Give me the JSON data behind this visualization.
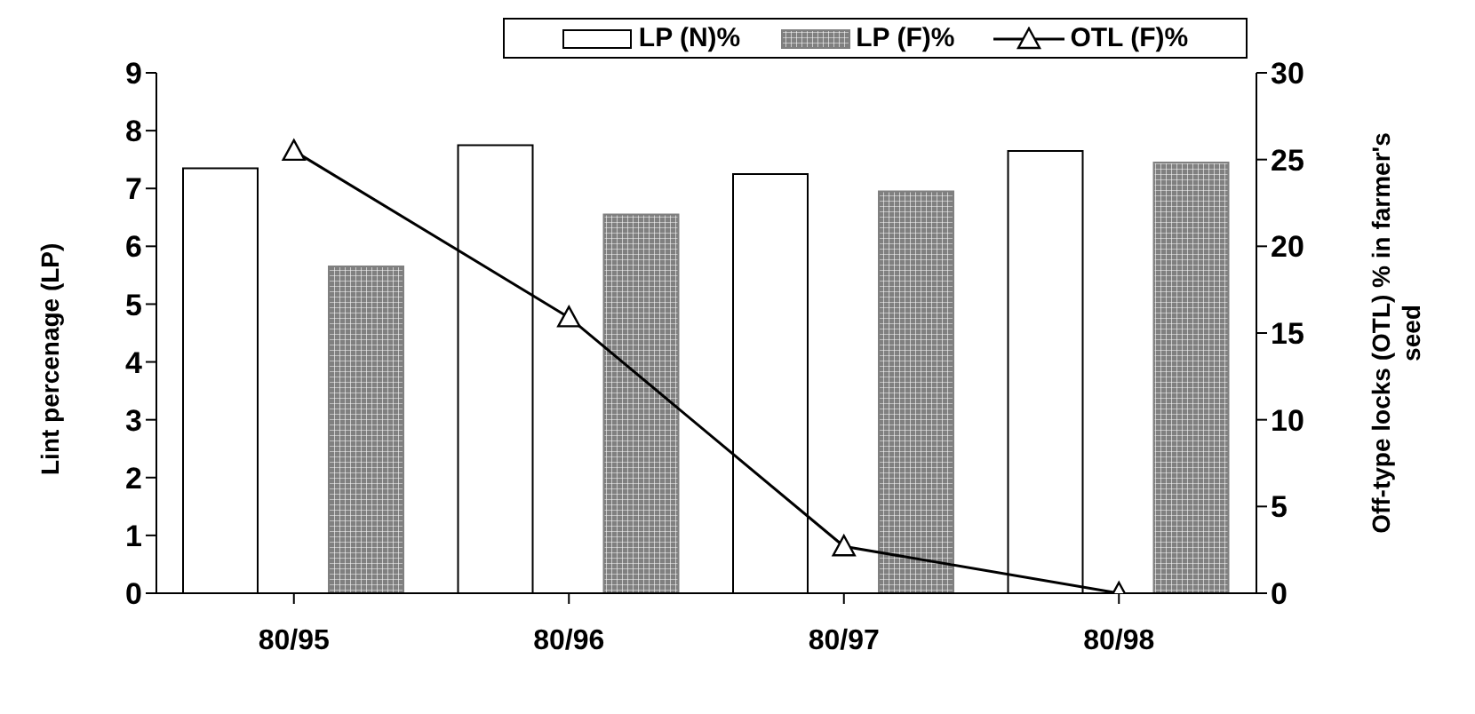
{
  "chart_data": {
    "type": "bar",
    "categories": [
      "80/95",
      "80/96",
      "80/97",
      "80/98"
    ],
    "ylabel": "Lint percenage (LP)",
    "y2label": "Off-type locks (OTL) % in farmer's seed",
    "ylim": [
      0,
      9
    ],
    "yticks": [
      0,
      1,
      2,
      3,
      4,
      5,
      6,
      7,
      8,
      9
    ],
    "y2lim": [
      0,
      30
    ],
    "y2ticks": [
      0,
      5,
      10,
      15,
      20,
      25,
      30
    ],
    "legend": "top",
    "grid": false,
    "marker": "triangle",
    "line_style": "solid",
    "series": [
      {
        "name": "LP (N)%",
        "color": "#ffffff",
        "values": [
          7.35,
          7.75,
          7.25,
          7.65
        ]
      },
      {
        "name": "LP (F)%",
        "color": "#808080",
        "values": [
          5.65,
          6.55,
          6.95,
          7.45
        ]
      },
      {
        "name": "OTL (F)%",
        "type": "line",
        "axis": "y2",
        "color": "#000000",
        "values": [
          25.5,
          15.9,
          2.7,
          0
        ]
      }
    ]
  }
}
